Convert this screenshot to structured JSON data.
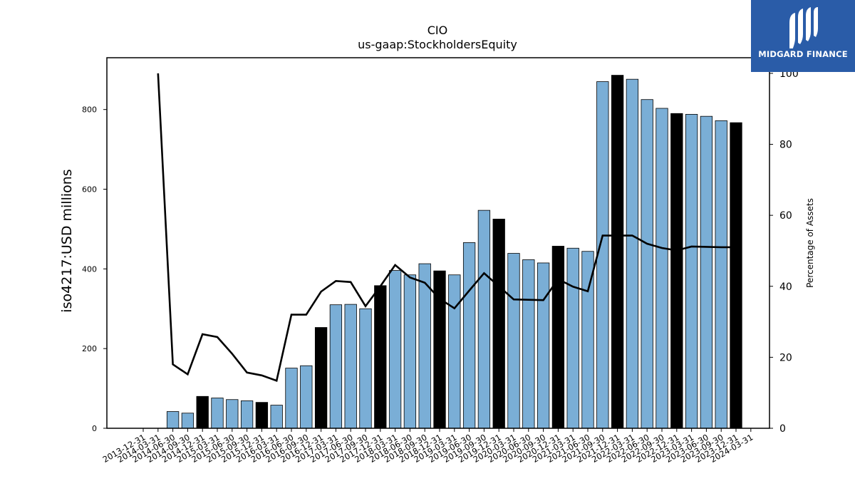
{
  "brand": {
    "name": "MIDGARD FINANCE",
    "logo_icon": "midgard-m-logo-icon",
    "color": "#2a5ca8"
  },
  "chart_data": {
    "type": "bar",
    "title": "CIO",
    "subtitle": "us-gaap:StockholdersEquity",
    "ylabel": "iso4217:USD  millions",
    "y2label": "Percentage of Assets",
    "ylim": [
      0,
      930
    ],
    "y2lim": [
      0,
      104.4
    ],
    "yticks": [
      0,
      200,
      400,
      600,
      800
    ],
    "y2ticks": [
      0,
      20,
      40,
      60,
      80,
      100
    ],
    "grid": false,
    "legend": "none",
    "bar_color": "#7aaed6",
    "highlight_color": "#000000",
    "line_color": "#000000",
    "categories": [
      "2013-12-31",
      "2014-03-31",
      "2014-06-30",
      "2014-09-30",
      "2014-12-31",
      "2015-03-31",
      "2015-06-30",
      "2015-09-30",
      "2015-12-31",
      "2016-03-31",
      "2016-06-30",
      "2016-09-30",
      "2016-12-31",
      "2017-03-31",
      "2017-06-30",
      "2017-09-30",
      "2017-12-31",
      "2018-03-31",
      "2018-06-30",
      "2018-09-30",
      "2018-12-31",
      "2019-03-31",
      "2019-06-30",
      "2019-09-30",
      "2019-12-31",
      "2020-03-31",
      "2020-06-30",
      "2020-09-30",
      "2020-12-31",
      "2021-03-31",
      "2021-06-30",
      "2021-09-30",
      "2021-12-31",
      "2022-03-31",
      "2022-06-30",
      "2022-09-30",
      "2022-12-31",
      "2023-03-31",
      "2023-06-30",
      "2023-09-30",
      "2023-12-31",
      "2024-03-31"
    ],
    "series": [
      {
        "kind": "bar",
        "values": [
          null,
          null,
          42,
          38,
          80,
          76,
          72,
          69,
          65,
          58,
          151,
          157,
          253,
          310,
          311,
          300,
          358,
          396,
          385,
          413,
          395,
          385,
          466,
          547,
          525,
          439,
          423,
          415,
          457,
          452,
          444,
          870,
          886,
          876,
          825,
          803,
          790,
          788,
          783,
          772,
          767,
          null
        ],
        "highlight": [
          false,
          false,
          false,
          false,
          true,
          false,
          false,
          false,
          true,
          false,
          false,
          false,
          true,
          false,
          false,
          false,
          true,
          false,
          false,
          false,
          true,
          false,
          false,
          false,
          true,
          false,
          false,
          false,
          true,
          false,
          false,
          false,
          true,
          false,
          false,
          false,
          true,
          false,
          false,
          false,
          true,
          false
        ]
      },
      {
        "kind": "line",
        "axis": "right",
        "values": [
          null,
          100,
          18,
          15.2,
          26.5,
          25.7,
          21,
          15.7,
          14.9,
          13.4,
          32,
          32,
          38.5,
          41.5,
          41.2,
          34.4,
          40,
          46,
          42.5,
          41,
          36.5,
          33.8,
          38.8,
          43.7,
          40,
          36.3,
          36.2,
          36.1,
          42,
          39.9,
          38.6,
          54.3,
          54.3,
          54.3,
          52,
          50.8,
          50.1,
          51.2,
          51.1,
          51,
          51,
          null
        ]
      }
    ]
  }
}
